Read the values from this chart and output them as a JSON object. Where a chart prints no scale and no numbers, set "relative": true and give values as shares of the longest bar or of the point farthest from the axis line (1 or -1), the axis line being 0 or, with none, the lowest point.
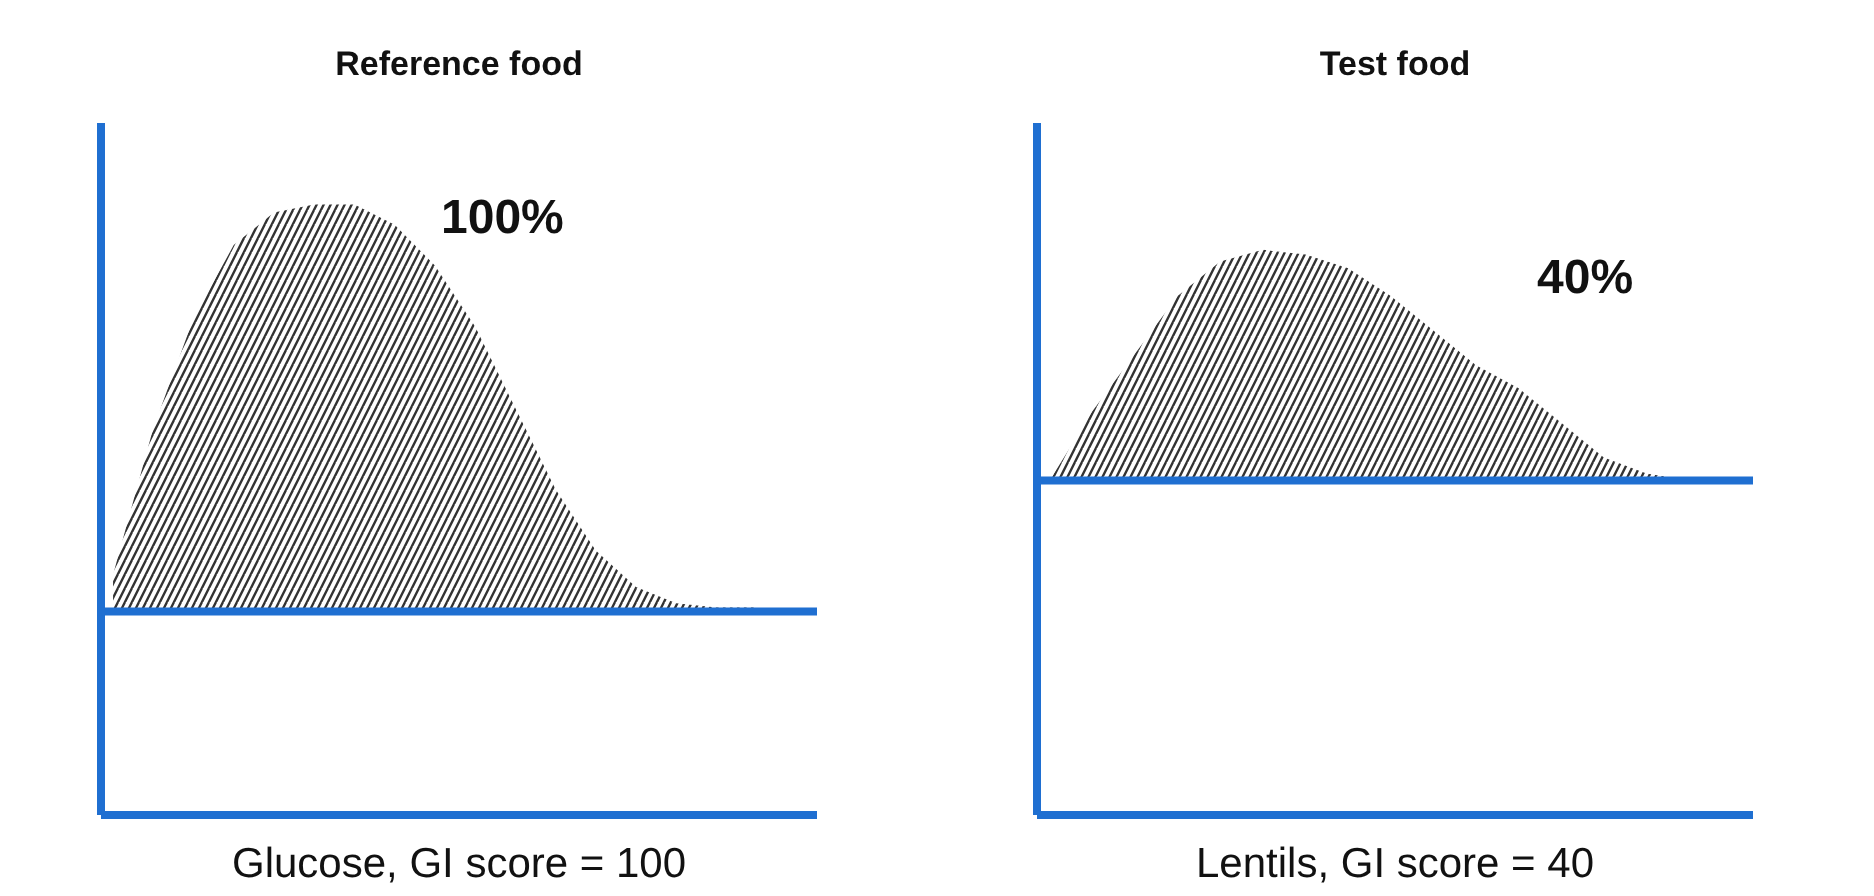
{
  "chart_data": [
    {
      "type": "area",
      "relative": true,
      "title": "Reference food",
      "annotations": [
        "100%",
        "Glucose, GI score = 100"
      ],
      "categories": [
        null,
        null,
        null,
        null,
        null,
        null,
        null,
        null,
        null,
        null,
        null,
        null,
        null,
        null,
        null,
        null,
        null
      ],
      "series": [
        {
          "color": "#333333",
          "values": [
            0.09,
            0.45,
            0.72,
            0.9,
            0.98,
            1.0,
            1.0,
            0.95,
            0.85,
            0.7,
            0.5,
            0.3,
            0.15,
            0.06,
            0.02,
            0.01,
            0.01
          ]
        }
      ],
      "ref_lines": [
        {
          "axis": "y",
          "value": 0,
          "color": "#1f6fd1"
        }
      ]
    },
    {
      "type": "area",
      "relative": true,
      "title": "Test food",
      "annotations": [
        "40%",
        "Lentils, GI score = 40"
      ],
      "categories": [
        null,
        null,
        null,
        null,
        null,
        null,
        null,
        null,
        null,
        null,
        null,
        null,
        null,
        null,
        null,
        null
      ],
      "series": [
        {
          "color": "#333333",
          "values": [
            0.0,
            0.3,
            0.55,
            0.8,
            0.95,
            1.0,
            0.98,
            0.92,
            0.8,
            0.65,
            0.5,
            0.4,
            0.25,
            0.1,
            0.03,
            0.0
          ]
        }
      ],
      "ref_lines": [
        {
          "axis": "y",
          "value": 0,
          "color": "#1f6fd1"
        }
      ]
    }
  ]
}
